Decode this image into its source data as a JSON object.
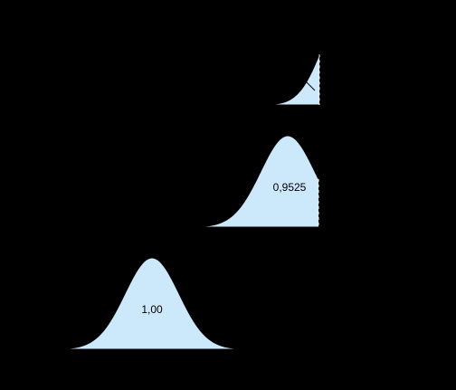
{
  "curves": [
    {
      "label": null
    },
    {
      "label": "0,9525"
    },
    {
      "label": "1,00"
    }
  ]
}
